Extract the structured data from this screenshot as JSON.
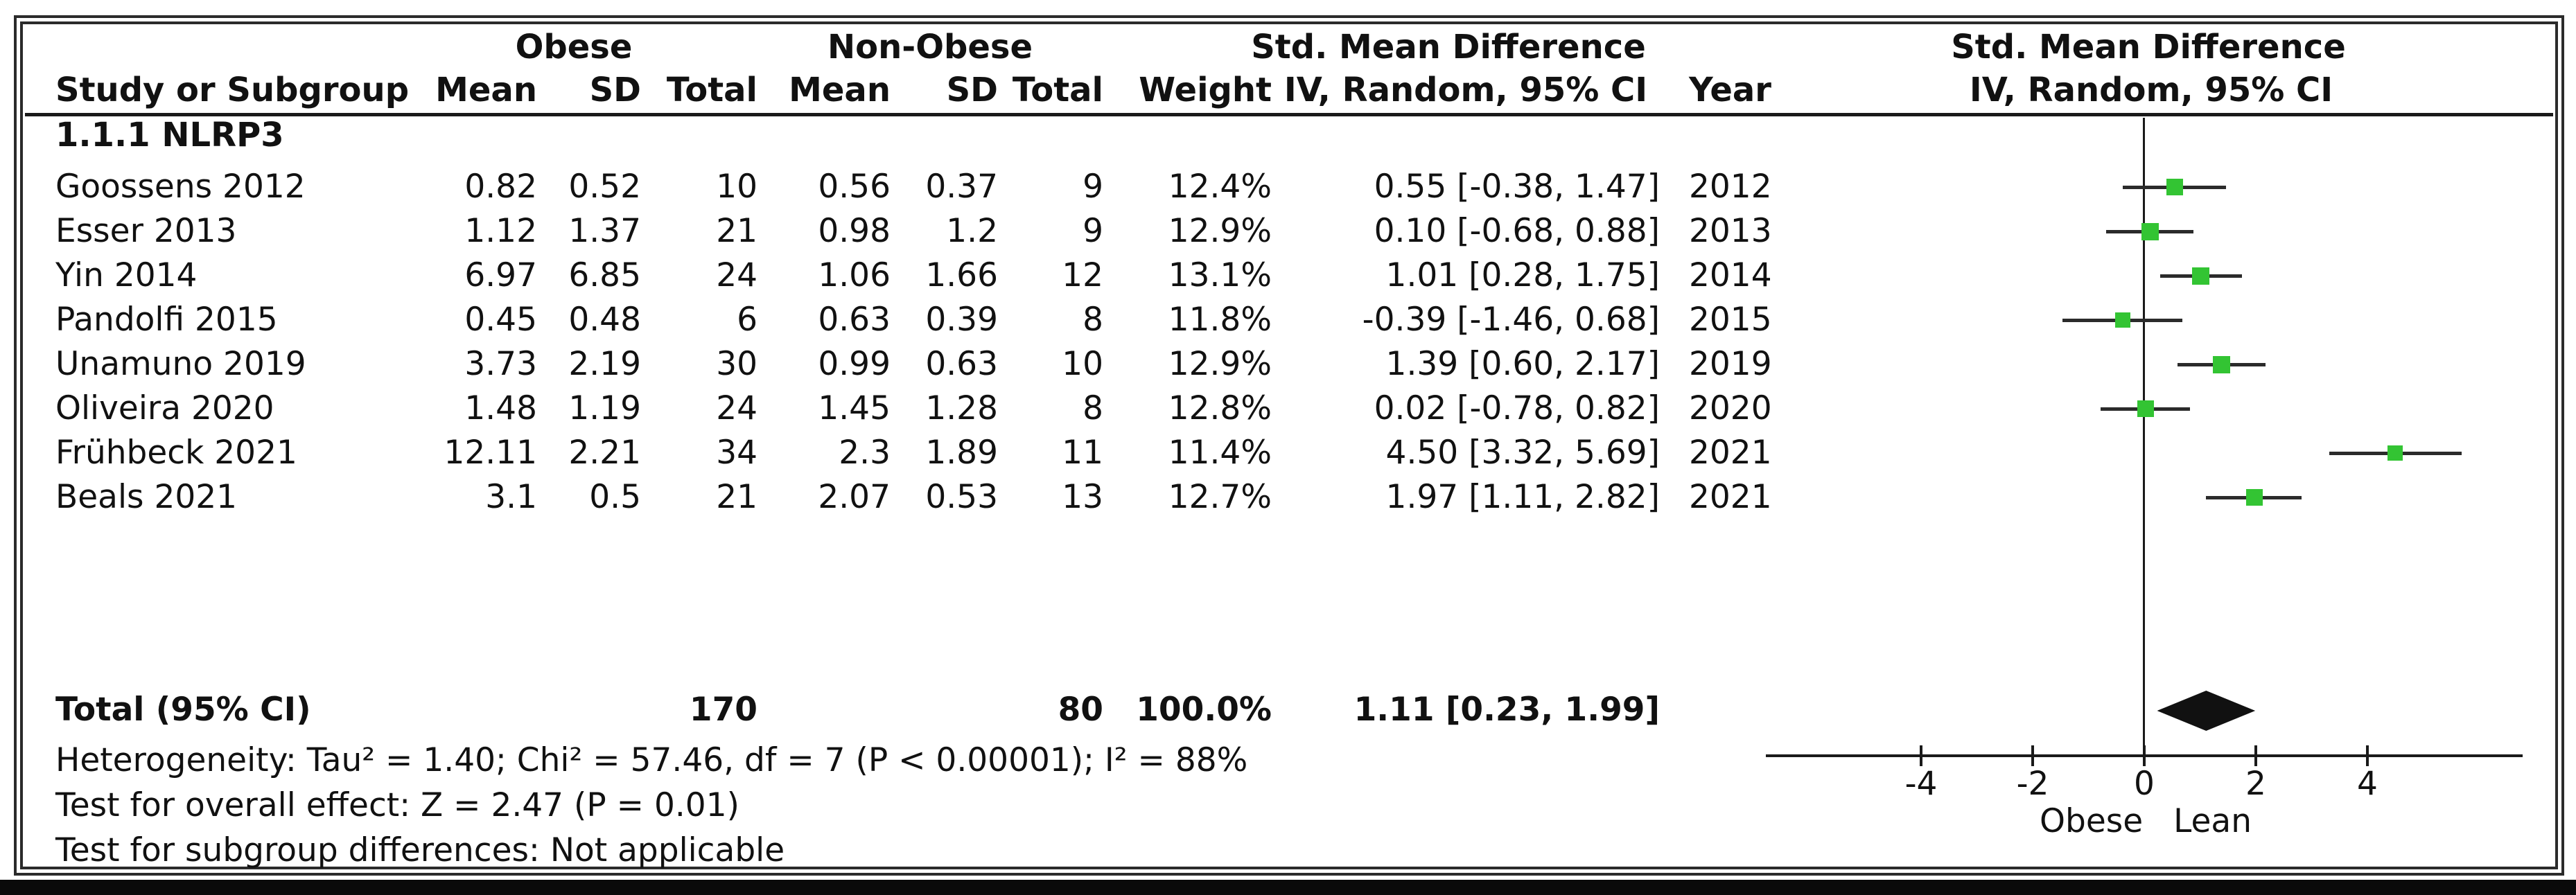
{
  "table": {
    "group_headers": {
      "obese": "Obese",
      "non_obese": "Non-Obese",
      "smd_left": "Std. Mean Difference",
      "smd_right": "Std. Mean Difference"
    },
    "columns": {
      "study": "Study or Subgroup",
      "mean1": "Mean",
      "sd1": "SD",
      "total1": "Total",
      "mean2": "Mean",
      "sd2": "SD",
      "total2": "Total",
      "weight": "Weight",
      "ci": "IV, Random, 95% CI",
      "year": "Year",
      "ci_right": "IV, Random, 95% CI"
    },
    "subgroup_label": "1.1.1 NLRP3"
  },
  "footer": {
    "heterogeneity": "Heterogeneity: Tau² = 1.40; Chi² = 57.46, df = 7 (P < 0.00001); I² = 88%",
    "overall_effect": "Test for overall effect: Z = 2.47 (P = 0.01)",
    "subgroup_differences": "Test for subgroup differences: Not applicable"
  },
  "colors": {
    "marker_green": "#33c433",
    "line_dark": "#1a1a1a",
    "diamond_black": "#111111"
  },
  "chart_data": {
    "type": "forest",
    "title": "Std. Mean Difference, IV, Random, 95% CI",
    "effect_model": "IV, Random, 95% CI",
    "axis_ticks": [
      -4,
      -2,
      0,
      2,
      4
    ],
    "axis_labels": {
      "left": "Obese",
      "right": "Lean"
    },
    "studies": [
      {
        "study": "Goossens 2012",
        "obese_mean": "0.82",
        "obese_sd": "0.52",
        "obese_total": "10",
        "lean_mean": "0.56",
        "lean_sd": "0.37",
        "lean_total": "9",
        "weight": "12.4%",
        "weight_pct": 12.4,
        "ci_text": "0.55 [-0.38, 1.47]",
        "est": 0.55,
        "lo": -0.38,
        "hi": 1.47,
        "year": "2012"
      },
      {
        "study": "Esser 2013",
        "obese_mean": "1.12",
        "obese_sd": "1.37",
        "obese_total": "21",
        "lean_mean": "0.98",
        "lean_sd": "1.2",
        "lean_total": "9",
        "weight": "12.9%",
        "weight_pct": 12.9,
        "ci_text": "0.10 [-0.68, 0.88]",
        "est": 0.1,
        "lo": -0.68,
        "hi": 0.88,
        "year": "2013"
      },
      {
        "study": "Yin 2014",
        "obese_mean": "6.97",
        "obese_sd": "6.85",
        "obese_total": "24",
        "lean_mean": "1.06",
        "lean_sd": "1.66",
        "lean_total": "12",
        "weight": "13.1%",
        "weight_pct": 13.1,
        "ci_text": "1.01 [0.28, 1.75]",
        "est": 1.01,
        "lo": 0.28,
        "hi": 1.75,
        "year": "2014"
      },
      {
        "study": "Pandolfi 2015",
        "obese_mean": "0.45",
        "obese_sd": "0.48",
        "obese_total": "6",
        "lean_mean": "0.63",
        "lean_sd": "0.39",
        "lean_total": "8",
        "weight": "11.8%",
        "weight_pct": 11.8,
        "ci_text": "-0.39 [-1.46, 0.68]",
        "est": -0.39,
        "lo": -1.46,
        "hi": 0.68,
        "year": "2015"
      },
      {
        "study": "Unamuno 2019",
        "obese_mean": "3.73",
        "obese_sd": "2.19",
        "obese_total": "30",
        "lean_mean": "0.99",
        "lean_sd": "0.63",
        "lean_total": "10",
        "weight": "12.9%",
        "weight_pct": 12.9,
        "ci_text": "1.39 [0.60, 2.17]",
        "est": 1.39,
        "lo": 0.6,
        "hi": 2.17,
        "year": "2019"
      },
      {
        "study": "Oliveira 2020",
        "obese_mean": "1.48",
        "obese_sd": "1.19",
        "obese_total": "24",
        "lean_mean": "1.45",
        "lean_sd": "1.28",
        "lean_total": "8",
        "weight": "12.8%",
        "weight_pct": 12.8,
        "ci_text": "0.02 [-0.78, 0.82]",
        "est": 0.02,
        "lo": -0.78,
        "hi": 0.82,
        "year": "2020"
      },
      {
        "study": "Frühbeck 2021",
        "obese_mean": "12.11",
        "obese_sd": "2.21",
        "obese_total": "34",
        "lean_mean": "2.3",
        "lean_sd": "1.89",
        "lean_total": "11",
        "weight": "11.4%",
        "weight_pct": 11.4,
        "ci_text": "4.50 [3.32, 5.69]",
        "est": 4.5,
        "lo": 3.32,
        "hi": 5.69,
        "year": "2021"
      },
      {
        "study": "Beals 2021",
        "obese_mean": "3.1",
        "obese_sd": "0.5",
        "obese_total": "21",
        "lean_mean": "2.07",
        "lean_sd": "0.53",
        "lean_total": "13",
        "weight": "12.7%",
        "weight_pct": 12.7,
        "ci_text": "1.97 [1.11, 2.82]",
        "est": 1.97,
        "lo": 1.11,
        "hi": 2.82,
        "year": "2021"
      }
    ],
    "total": {
      "label": "Total (95% CI)",
      "obese_total": "170",
      "lean_total": "80",
      "weight": "100.0%",
      "ci_text": "1.11 [0.23, 1.99]",
      "est": 1.11,
      "lo": 0.23,
      "hi": 1.99
    }
  }
}
